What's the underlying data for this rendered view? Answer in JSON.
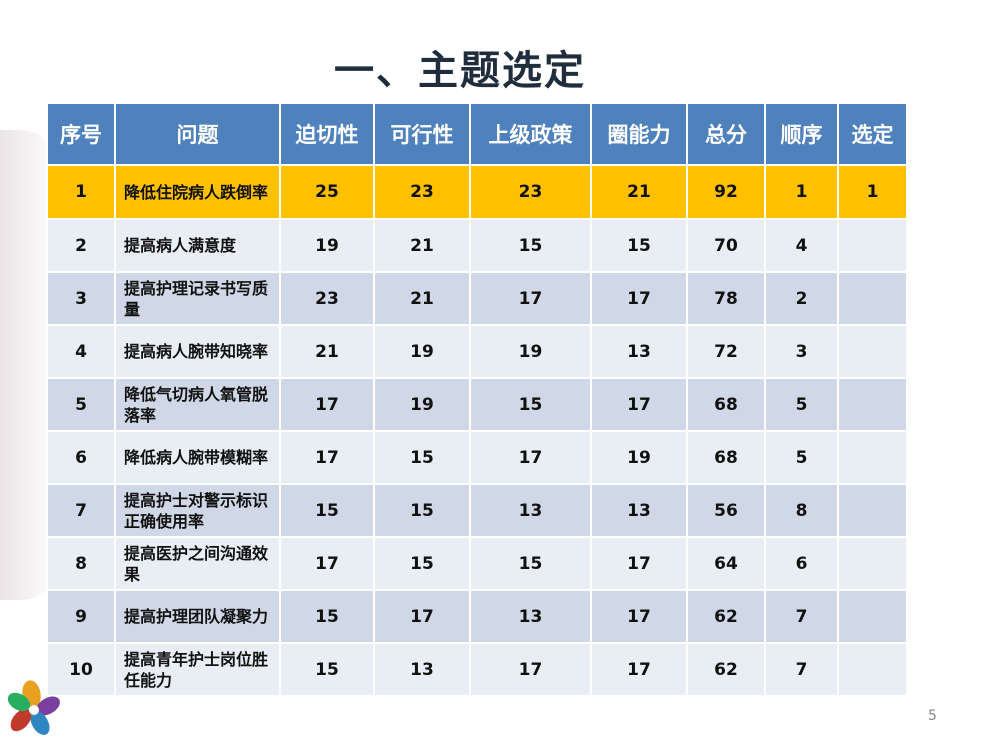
{
  "slide": {
    "title": "一、主题选定",
    "page_number": "5"
  },
  "table": {
    "headers": [
      "序号",
      "问题",
      "迫切性",
      "可行性",
      "上级政策",
      "圈能力",
      "总分",
      "顺序",
      "选定"
    ],
    "rows": [
      [
        "1",
        "降低住院病人跌倒率",
        "25",
        "23",
        "23",
        "21",
        "92",
        "1",
        "1"
      ],
      [
        "2",
        "提高病人满意度",
        "19",
        "21",
        "15",
        "15",
        "70",
        "4",
        ""
      ],
      [
        "3",
        "提高护理记录书写质量",
        "23",
        "21",
        "17",
        "17",
        "78",
        "2",
        ""
      ],
      [
        "4",
        "提高病人腕带知晓率",
        "21",
        "19",
        "19",
        "13",
        "72",
        "3",
        ""
      ],
      [
        "5",
        "降低气切病人氧管脱落率",
        "17",
        "19",
        "15",
        "17",
        "68",
        "5",
        ""
      ],
      [
        "6",
        "降低病人腕带模糊率",
        "17",
        "15",
        "17",
        "19",
        "68",
        "5",
        ""
      ],
      [
        "7",
        "提高护士对警示标识正确使用率",
        "15",
        "15",
        "13",
        "13",
        "56",
        "8",
        ""
      ],
      [
        "8",
        "提高医护之间沟通效果",
        "17",
        "15",
        "15",
        "17",
        "64",
        "6",
        ""
      ],
      [
        "9",
        "提高护理团队凝聚力",
        "15",
        "17",
        "13",
        "17",
        "62",
        "7",
        ""
      ],
      [
        "10",
        "提高青年护士岗位胜任能力",
        "15",
        "13",
        "17",
        "17",
        "62",
        "7",
        ""
      ]
    ]
  },
  "colors": {
    "header": "#4f81bd",
    "selected_row": "#ffc000",
    "row_light": "#e9edf4",
    "row_dark": "#d0d8e8"
  }
}
